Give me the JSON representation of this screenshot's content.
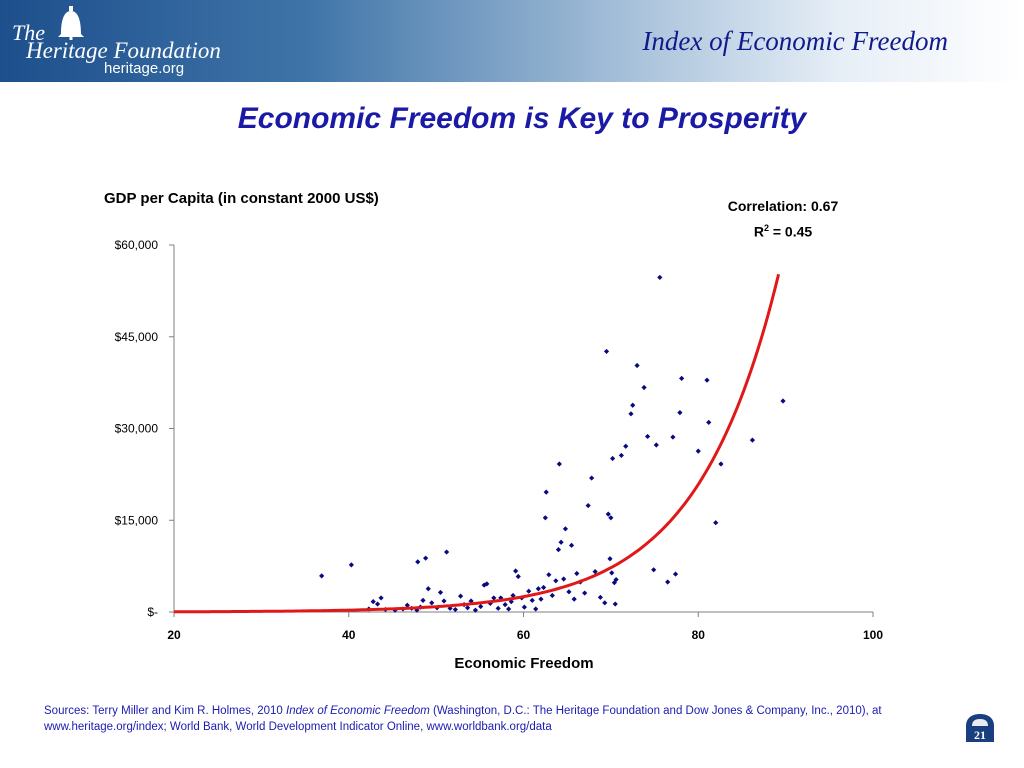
{
  "header": {
    "logo_the": "The",
    "logo_name": "Heritage Foundation",
    "logo_url": "heritage.org",
    "title": "Index of Economic Freedom"
  },
  "slide": {
    "title": "Economic Freedom is Key to Prosperity",
    "page_number": "21"
  },
  "sources": {
    "prefix": "Sources: Terry Miller and Kim R. Holmes, 2010 ",
    "book": "Index of Economic Freedom",
    "suffix": " (Washington, D.C.: The Heritage Foundation and Dow Jones & Company, Inc., 2010), at www.heritage.org/index; World Bank, World Development Indicator Online, www.worldbank.org/data"
  },
  "colors": {
    "points": "#0a0a80",
    "trend": "#e01818",
    "title": "#1a1aa6",
    "header_title": "#0f1a8c"
  },
  "chart_data": {
    "type": "scatter",
    "ylabel": "GDP per Capita (in constant 2000 US$)",
    "xlabel": "Economic Freedom",
    "annotation_correlation": "Correlation: 0.67",
    "annotation_r2_label": "R",
    "annotation_r2_exp": "2",
    "annotation_r2_value": " = 0.45",
    "xlim": [
      20,
      100
    ],
    "ylim": [
      0,
      60000
    ],
    "x_ticks": [
      20,
      40,
      60,
      80,
      100
    ],
    "x_tick_labels": [
      "20",
      "40",
      "60",
      "80",
      "100"
    ],
    "y_ticks": [
      0,
      15000,
      30000,
      45000,
      60000
    ],
    "y_tick_labels": [
      "$-",
      "$15,000",
      "$30,000",
      "$45,000",
      "$60,000"
    ],
    "grid": false,
    "trendline": {
      "type": "exponential",
      "a": 4.4,
      "b": 0.1058,
      "x_range": [
        20,
        89.2
      ]
    },
    "points": [
      [
        36.9,
        5900
      ],
      [
        40.3,
        7700
      ],
      [
        42.3,
        500
      ],
      [
        42.8,
        1700
      ],
      [
        43.3,
        1300
      ],
      [
        43.7,
        2300
      ],
      [
        44.2,
        400
      ],
      [
        45.3,
        300
      ],
      [
        46.2,
        500
      ],
      [
        46.7,
        1100
      ],
      [
        47.2,
        600
      ],
      [
        47.8,
        300
      ],
      [
        47.9,
        8200
      ],
      [
        48.2,
        800
      ],
      [
        48.5,
        1900
      ],
      [
        48.8,
        8800
      ],
      [
        49.1,
        3800
      ],
      [
        49.5,
        1500
      ],
      [
        50.1,
        700
      ],
      [
        50.5,
        3200
      ],
      [
        50.9,
        1800
      ],
      [
        51.2,
        9800
      ],
      [
        51.6,
        600
      ],
      [
        52.2,
        400
      ],
      [
        52.8,
        2600
      ],
      [
        53.2,
        1200
      ],
      [
        53.6,
        700
      ],
      [
        54.0,
        1800
      ],
      [
        54.5,
        300
      ],
      [
        55.1,
        900
      ],
      [
        55.5,
        4400
      ],
      [
        55.8,
        4600
      ],
      [
        56.2,
        1400
      ],
      [
        56.6,
        2300
      ],
      [
        57.1,
        600
      ],
      [
        57.4,
        2300
      ],
      [
        57.9,
        1200
      ],
      [
        58.3,
        500
      ],
      [
        58.6,
        1700
      ],
      [
        58.8,
        2700
      ],
      [
        59.1,
        6700
      ],
      [
        59.4,
        5800
      ],
      [
        59.8,
        2300
      ],
      [
        60.1,
        800
      ],
      [
        60.6,
        3400
      ],
      [
        61.0,
        1900
      ],
      [
        61.4,
        500
      ],
      [
        61.7,
        3800
      ],
      [
        62.0,
        2100
      ],
      [
        62.3,
        4000
      ],
      [
        62.5,
        15400
      ],
      [
        62.6,
        19600
      ],
      [
        62.9,
        6100
      ],
      [
        63.3,
        2700
      ],
      [
        63.7,
        5100
      ],
      [
        64.0,
        10200
      ],
      [
        64.1,
        24200
      ],
      [
        64.3,
        11400
      ],
      [
        64.6,
        5400
      ],
      [
        64.8,
        13600
      ],
      [
        65.2,
        3300
      ],
      [
        65.5,
        10900
      ],
      [
        65.8,
        2100
      ],
      [
        66.1,
        6300
      ],
      [
        66.5,
        4900
      ],
      [
        67.0,
        3100
      ],
      [
        67.4,
        17400
      ],
      [
        67.8,
        21900
      ],
      [
        68.2,
        6600
      ],
      [
        68.8,
        2400
      ],
      [
        69.3,
        1500
      ],
      [
        69.5,
        42600
      ],
      [
        69.7,
        16000
      ],
      [
        69.9,
        8700
      ],
      [
        70.0,
        15400
      ],
      [
        70.1,
        6400
      ],
      [
        70.2,
        25100
      ],
      [
        70.4,
        4800
      ],
      [
        70.5,
        1300
      ],
      [
        70.6,
        5300
      ],
      [
        71.2,
        25600
      ],
      [
        71.7,
        27100
      ],
      [
        72.3,
        32400
      ],
      [
        72.5,
        33800
      ],
      [
        73.0,
        40300
      ],
      [
        73.8,
        36700
      ],
      [
        74.2,
        28700
      ],
      [
        74.9,
        6900
      ],
      [
        75.2,
        27300
      ],
      [
        75.6,
        54700
      ],
      [
        76.5,
        4900
      ],
      [
        77.1,
        28600
      ],
      [
        77.4,
        6200
      ],
      [
        77.9,
        32600
      ],
      [
        78.1,
        38200
      ],
      [
        80.0,
        26300
      ],
      [
        81.0,
        37900
      ],
      [
        81.2,
        31000
      ],
      [
        82.0,
        14600
      ],
      [
        82.6,
        24200
      ],
      [
        86.2,
        28100
      ],
      [
        89.7,
        34500
      ]
    ]
  }
}
